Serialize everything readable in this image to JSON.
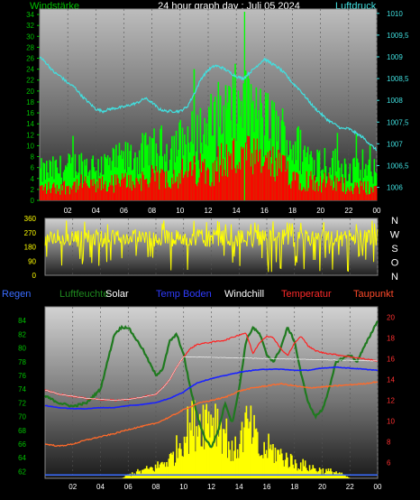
{
  "header": {
    "left_label": "Windstärke",
    "title": "24 hour graph day : Juli 05 2024",
    "right_label": "Luftdruck"
  },
  "legend": [
    {
      "label": "Regen",
      "color": "#3a6cff"
    },
    {
      "label": "Luftfeuchte",
      "color": "#1f8a1f"
    },
    {
      "label": "Solar",
      "color": "#ffffff"
    },
    {
      "label": "Temp Boden",
      "color": "#2f3cff"
    },
    {
      "label": "Windchill",
      "color": "#ffffff"
    },
    {
      "label": "Temperatur",
      "color": "#ff2a2a"
    },
    {
      "label": "Taupunkt",
      "color": "#ff4a2a"
    }
  ],
  "compass": [
    "N",
    "W",
    "S",
    "O",
    "N"
  ],
  "x_ticks": [
    "02",
    "04",
    "06",
    "08",
    "10",
    "12",
    "14",
    "16",
    "18",
    "20",
    "22",
    "00"
  ],
  "colors": {
    "wind_gust": "#00ff00",
    "wind_avg": "#ff0000",
    "pressure": "#40e0e0",
    "wind_dir": "#ffff00",
    "humidity": "#1f7a1f",
    "solar": "#ffff00",
    "temp_soil": "#1a22ff",
    "temp": "#ff2222",
    "dew": "#ff6a2a",
    "windchill": "#ffffff",
    "left_axis": "#00c000",
    "right_axis": "#40e0e0",
    "left_axis_bottom": "#00c000",
    "right_axis_bottom": "#ff3030"
  },
  "chart_data": [
    {
      "type": "bar",
      "name": "wind_pressure",
      "x_range": [
        0,
        24
      ],
      "y_left_ticks": [
        "0",
        "2",
        "4",
        "6",
        "8",
        "10",
        "12",
        "14",
        "16",
        "18",
        "20",
        "22",
        "24",
        "26",
        "28",
        "30",
        "32",
        "34"
      ],
      "y_left_range": [
        0,
        35
      ],
      "y_right_ticks": [
        "1006",
        "1006,5",
        "1007",
        "1007,5",
        "1008",
        "1008,5",
        "1009",
        "1009,5",
        "1010"
      ],
      "y_right_range": [
        1005.7,
        1010.1
      ],
      "gust_envelope": [
        [
          0,
          7
        ],
        [
          1,
          7.5
        ],
        [
          2,
          8
        ],
        [
          3,
          9
        ],
        [
          4,
          8.5
        ],
        [
          5,
          9
        ],
        [
          6,
          10
        ],
        [
          7,
          11
        ],
        [
          8,
          12
        ],
        [
          9,
          13
        ],
        [
          10,
          14
        ],
        [
          11,
          15.5
        ],
        [
          12,
          18
        ],
        [
          13,
          21
        ],
        [
          14,
          23
        ],
        [
          15,
          21
        ],
        [
          16,
          19
        ],
        [
          17,
          17
        ],
        [
          18,
          14
        ],
        [
          19,
          11
        ],
        [
          20,
          10
        ],
        [
          21,
          9
        ],
        [
          22,
          8
        ],
        [
          23,
          7
        ],
        [
          24,
          7
        ]
      ],
      "avg_envelope": [
        [
          0,
          3
        ],
        [
          1,
          3
        ],
        [
          2,
          3.5
        ],
        [
          3,
          4
        ],
        [
          4,
          3.5
        ],
        [
          5,
          4
        ],
        [
          6,
          4.5
        ],
        [
          7,
          5
        ],
        [
          8,
          5.5
        ],
        [
          9,
          6
        ],
        [
          10,
          6.5
        ],
        [
          11,
          7
        ],
        [
          12,
          8
        ],
        [
          13,
          9.5
        ],
        [
          14,
          10.5
        ],
        [
          15,
          10
        ],
        [
          16,
          9
        ],
        [
          17,
          8
        ],
        [
          18,
          6.5
        ],
        [
          19,
          5
        ],
        [
          20,
          4.5
        ],
        [
          21,
          4
        ],
        [
          22,
          3.5
        ],
        [
          23,
          3
        ],
        [
          24,
          3
        ]
      ],
      "pressure": [
        [
          0,
          1009.0
        ],
        [
          0.5,
          1008.85
        ],
        [
          1,
          1008.65
        ],
        [
          1.5,
          1008.55
        ],
        [
          2,
          1008.4
        ],
        [
          2.5,
          1008.3
        ],
        [
          3,
          1008.1
        ],
        [
          3.5,
          1007.95
        ],
        [
          4,
          1007.8
        ],
        [
          4.5,
          1007.75
        ],
        [
          5,
          1007.8
        ],
        [
          6,
          1007.85
        ],
        [
          7,
          1007.95
        ],
        [
          7.5,
          1008.05
        ],
        [
          8,
          1007.95
        ],
        [
          8.5,
          1007.8
        ],
        [
          9,
          1007.75
        ],
        [
          10,
          1007.75
        ],
        [
          10.5,
          1007.85
        ],
        [
          11,
          1008.15
        ],
        [
          11.5,
          1008.5
        ],
        [
          12,
          1008.7
        ],
        [
          12.5,
          1008.8
        ],
        [
          13,
          1008.75
        ],
        [
          13.5,
          1008.65
        ],
        [
          14,
          1008.55
        ],
        [
          14.5,
          1008.5
        ],
        [
          15,
          1008.65
        ],
        [
          15.5,
          1008.8
        ],
        [
          16,
          1008.95
        ],
        [
          16.5,
          1008.85
        ],
        [
          17,
          1008.75
        ],
        [
          17.5,
          1008.6
        ],
        [
          18,
          1008.4
        ],
        [
          18.5,
          1008.25
        ],
        [
          19,
          1008.05
        ],
        [
          19.5,
          1007.85
        ],
        [
          20,
          1007.7
        ],
        [
          20.5,
          1007.55
        ],
        [
          21,
          1007.45
        ],
        [
          21.5,
          1007.35
        ],
        [
          22,
          1007.35
        ],
        [
          22.5,
          1007.25
        ],
        [
          23,
          1007.15
        ],
        [
          23.5,
          1007.0
        ],
        [
          24,
          1006.85
        ]
      ]
    },
    {
      "type": "line",
      "name": "wind_direction",
      "x_range": [
        0,
        24
      ],
      "y_ticks": [
        "0",
        "90",
        "180",
        "270",
        "360"
      ],
      "y_range": [
        0,
        360
      ],
      "band": [
        180,
        290
      ]
    },
    {
      "type": "line",
      "name": "climate",
      "x_range": [
        0,
        24
      ],
      "y_left_ticks": [
        "62",
        "64",
        "66",
        "68",
        "70",
        "72",
        "74",
        "76",
        "78",
        "80",
        "82",
        "84"
      ],
      "y_left_range": [
        61,
        86
      ],
      "y_right_ticks": [
        "6",
        "8",
        "10",
        "12",
        "14",
        "16",
        "18",
        "20"
      ],
      "y_right_range": [
        4.5,
        21
      ],
      "humidity": [
        [
          0,
          73
        ],
        [
          1,
          72
        ],
        [
          2,
          71.5
        ],
        [
          3,
          72
        ],
        [
          4,
          74
        ],
        [
          4.5,
          78
        ],
        [
          5,
          82
        ],
        [
          5.5,
          83
        ],
        [
          6,
          83
        ],
        [
          6.5,
          81.5
        ],
        [
          7,
          80
        ],
        [
          7.5,
          78
        ],
        [
          8,
          76
        ],
        [
          8.5,
          77
        ],
        [
          9,
          81
        ],
        [
          9.5,
          82
        ],
        [
          10,
          79
        ],
        [
          10.5,
          74
        ],
        [
          11,
          70
        ],
        [
          11.5,
          67
        ],
        [
          12,
          65.5
        ],
        [
          12.5,
          68
        ],
        [
          13,
          72
        ],
        [
          13.5,
          69
        ],
        [
          14,
          74
        ],
        [
          14.5,
          81
        ],
        [
          15,
          83
        ],
        [
          15.5,
          82
        ],
        [
          16,
          79
        ],
        [
          16.5,
          78
        ],
        [
          17,
          80
        ],
        [
          17.5,
          83
        ],
        [
          18,
          81
        ],
        [
          18.5,
          76
        ],
        [
          19,
          72
        ],
        [
          19.5,
          70
        ],
        [
          20,
          71
        ],
        [
          20.5,
          74
        ],
        [
          21,
          78
        ],
        [
          22,
          79
        ],
        [
          22.5,
          78
        ],
        [
          23,
          80
        ],
        [
          23.5,
          82
        ],
        [
          24,
          84
        ]
      ],
      "temp_soil": [
        [
          0,
          11.5
        ],
        [
          1,
          11.3
        ],
        [
          2,
          11.2
        ],
        [
          3,
          11.2
        ],
        [
          4,
          11.3
        ],
        [
          5,
          11.3
        ],
        [
          6,
          11.5
        ],
        [
          7,
          11.6
        ],
        [
          8,
          11.8
        ],
        [
          9,
          12.2
        ],
        [
          10,
          12.8
        ],
        [
          10.5,
          13.3
        ],
        [
          11,
          13.7
        ],
        [
          12,
          14.1
        ],
        [
          13,
          14.4
        ],
        [
          14,
          14.7
        ],
        [
          15,
          14.9
        ],
        [
          16,
          15.0
        ],
        [
          17,
          15.0
        ],
        [
          18,
          14.9
        ],
        [
          19,
          14.9
        ],
        [
          20,
          15.1
        ],
        [
          21,
          15.2
        ],
        [
          22,
          15.1
        ],
        [
          23,
          15.0
        ],
        [
          24,
          14.9
        ]
      ],
      "temp": [
        [
          0,
          13.0
        ],
        [
          1,
          12.6
        ],
        [
          2,
          12.4
        ],
        [
          3,
          12.2
        ],
        [
          4,
          12.1
        ],
        [
          5,
          12.0
        ],
        [
          6,
          12.1
        ],
        [
          7,
          12.3
        ],
        [
          8,
          12.6
        ],
        [
          8.5,
          13.2
        ],
        [
          9,
          14.0
        ],
        [
          9.5,
          15.2
        ],
        [
          10,
          16.2
        ],
        [
          10.5,
          17.0
        ],
        [
          11,
          17.4
        ],
        [
          12,
          17.6
        ],
        [
          13,
          17.8
        ],
        [
          14,
          18.3
        ],
        [
          14.5,
          18.5
        ],
        [
          15,
          16.5
        ],
        [
          15.5,
          17.6
        ],
        [
          16,
          18.2
        ],
        [
          16.5,
          18.0
        ],
        [
          17,
          17.0
        ],
        [
          17.5,
          16.3
        ],
        [
          18,
          17.5
        ],
        [
          18.5,
          18.2
        ],
        [
          19,
          17.2
        ],
        [
          19.5,
          16.8
        ],
        [
          20,
          16.6
        ],
        [
          21,
          16.4
        ],
        [
          22,
          16.2
        ],
        [
          23,
          16.0
        ],
        [
          24,
          15.8
        ]
      ],
      "dew": [
        [
          0,
          7.8
        ],
        [
          1,
          7.6
        ],
        [
          2,
          7.8
        ],
        [
          3,
          8.2
        ],
        [
          4,
          8.5
        ],
        [
          5,
          8.8
        ],
        [
          6,
          9.2
        ],
        [
          7,
          9.5
        ],
        [
          8,
          9.8
        ],
        [
          9,
          10.4
        ],
        [
          10,
          11.1
        ],
        [
          11,
          11.7
        ],
        [
          12,
          12.0
        ],
        [
          13,
          12.3
        ],
        [
          14,
          12.9
        ],
        [
          15,
          13.2
        ],
        [
          16,
          13.4
        ],
        [
          17,
          13.6
        ],
        [
          18,
          13.4
        ],
        [
          19,
          13.2
        ],
        [
          20,
          13.3
        ],
        [
          21,
          13.4
        ],
        [
          22,
          13.5
        ],
        [
          23,
          13.6
        ],
        [
          24,
          13.8
        ]
      ],
      "windchill": [
        [
          0,
          13.0
        ],
        [
          1,
          12.6
        ],
        [
          2,
          12.4
        ],
        [
          3,
          12.2
        ],
        [
          4,
          12.1
        ],
        [
          5,
          12.0
        ],
        [
          6,
          12.1
        ],
        [
          7,
          12.3
        ],
        [
          8,
          12.6
        ],
        [
          8.5,
          13.2
        ],
        [
          9,
          14.0
        ],
        [
          9.5,
          15.2
        ],
        [
          10,
          16.2
        ],
        [
          24,
          15.8
        ]
      ],
      "solar_envelope": [
        [
          0,
          0
        ],
        [
          5.5,
          0
        ],
        [
          6,
          0.5
        ],
        [
          7,
          1
        ],
        [
          8,
          1.5
        ],
        [
          8.6,
          2.2
        ],
        [
          9,
          2.5
        ],
        [
          9.5,
          4
        ],
        [
          10,
          6
        ],
        [
          10.5,
          7
        ],
        [
          11,
          7.5
        ],
        [
          12,
          8.5
        ],
        [
          13,
          6
        ],
        [
          13.5,
          3
        ],
        [
          14,
          5
        ],
        [
          14.5,
          7
        ],
        [
          15,
          6
        ],
        [
          15.5,
          3
        ],
        [
          16,
          4
        ],
        [
          17,
          3
        ],
        [
          18,
          2
        ],
        [
          19,
          1.5
        ],
        [
          20,
          1
        ],
        [
          21,
          0.8
        ],
        [
          22,
          0
        ],
        [
          24,
          0
        ]
      ]
    }
  ]
}
